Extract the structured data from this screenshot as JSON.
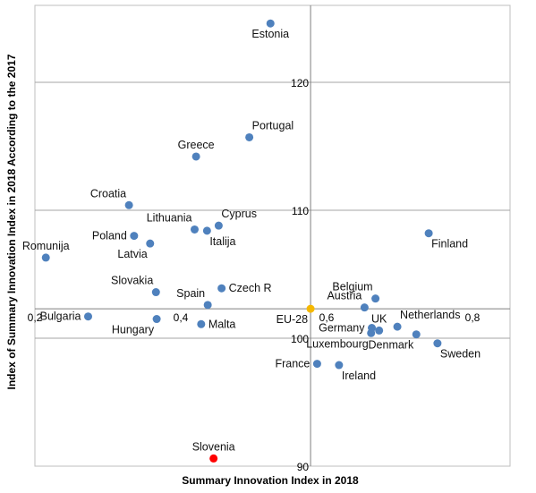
{
  "chart_data": {
    "type": "scatter",
    "title": "",
    "xlabel": "Summary Innovation Index in 2018",
    "ylabel": "Index of Summary Innovation Index in 2018 According to the 2017",
    "xlim": [
      0.2,
      0.8
    ],
    "ylim": [
      90,
      125
    ],
    "x_crosses_y_at": 102.3,
    "y_crosses_x_at": 0.578,
    "x_ticks": [
      {
        "value": 0.2,
        "label": "0,2"
      },
      {
        "value": 0.4,
        "label": "0,4"
      },
      {
        "value": 0.6,
        "label": "0,6"
      },
      {
        "value": 0.8,
        "label": "0,8"
      }
    ],
    "y_ticks": [
      {
        "value": 90,
        "label": "90"
      },
      {
        "value": 100,
        "label": "100"
      },
      {
        "value": 110,
        "label": "110"
      },
      {
        "value": 120,
        "label": "120"
      }
    ],
    "horizontal_gridlines": true,
    "marker_color": "#4f81bd",
    "highlight_colors": {
      "EU-28": "#f5b800",
      "Slovenia": "#ff0000"
    },
    "points": [
      {
        "name": "Estonia",
        "x": 0.523,
        "y": 124.6,
        "label_pos": "below",
        "color": "#4f81bd"
      },
      {
        "name": "Portugal",
        "x": 0.494,
        "y": 115.7,
        "label_pos": "above-right",
        "color": "#4f81bd"
      },
      {
        "name": "Greece",
        "x": 0.421,
        "y": 114.2,
        "label_pos": "above",
        "color": "#4f81bd"
      },
      {
        "name": "Croatia",
        "x": 0.329,
        "y": 110.4,
        "label_pos": "above-left",
        "color": "#4f81bd"
      },
      {
        "name": "Cyprus",
        "x": 0.452,
        "y": 108.8,
        "label_pos": "above-right",
        "color": "#4f81bd"
      },
      {
        "name": "Lithuania",
        "x": 0.419,
        "y": 108.5,
        "label_pos": "above-left",
        "color": "#4f81bd"
      },
      {
        "name": "Italija",
        "x": 0.436,
        "y": 108.4,
        "label_pos": "below-right",
        "color": "#4f81bd"
      },
      {
        "name": "Poland",
        "x": 0.336,
        "y": 108.0,
        "label_pos": "left",
        "color": "#4f81bd"
      },
      {
        "name": "Latvia",
        "x": 0.358,
        "y": 107.4,
        "label_pos": "below-left",
        "color": "#4f81bd"
      },
      {
        "name": "Romunija",
        "x": 0.215,
        "y": 106.3,
        "label_pos": "above",
        "color": "#4f81bd"
      },
      {
        "name": "Finland",
        "x": 0.74,
        "y": 108.2,
        "label_pos": "below-right",
        "color": "#4f81bd"
      },
      {
        "name": "Czech R",
        "x": 0.456,
        "y": 103.9,
        "label_pos": "right",
        "color": "#4f81bd"
      },
      {
        "name": "Slovakia",
        "x": 0.366,
        "y": 103.6,
        "label_pos": "above-left",
        "color": "#4f81bd"
      },
      {
        "name": "Spain",
        "x": 0.437,
        "y": 102.6,
        "label_pos": "above-left",
        "color": "#4f81bd"
      },
      {
        "name": "Belgium",
        "x": 0.667,
        "y": 103.1,
        "label_pos": "above-left",
        "color": "#4f81bd"
      },
      {
        "name": "Austria",
        "x": 0.652,
        "y": 102.4,
        "label_pos": "above-left",
        "color": "#4f81bd"
      },
      {
        "name": "EU-28",
        "x": 0.578,
        "y": 102.3,
        "label_pos": "below-left",
        "color": "#f5b800"
      },
      {
        "name": "Bulgaria",
        "x": 0.273,
        "y": 101.7,
        "label_pos": "left",
        "color": "#4f81bd"
      },
      {
        "name": "Hungary",
        "x": 0.367,
        "y": 101.5,
        "label_pos": "below-left",
        "color": "#4f81bd"
      },
      {
        "name": "Malta",
        "x": 0.428,
        "y": 101.1,
        "label_pos": "right",
        "color": "#4f81bd"
      },
      {
        "name": "UK",
        "x": 0.672,
        "y": 100.6,
        "label_pos": "above",
        "color": "#4f81bd"
      },
      {
        "name": "Germany",
        "x": 0.662,
        "y": 100.8,
        "label_pos": "left",
        "color": "#4f81bd"
      },
      {
        "name": "Netherlands",
        "x": 0.697,
        "y": 100.9,
        "label_pos": "above-right",
        "color": "#4f81bd"
      },
      {
        "name": "Luxembourg",
        "x": 0.661,
        "y": 100.4,
        "label_pos": "below-left",
        "color": "#4f81bd"
      },
      {
        "name": "Denmark",
        "x": 0.723,
        "y": 100.3,
        "label_pos": "below-left",
        "color": "#4f81bd"
      },
      {
        "name": "Sweden",
        "x": 0.752,
        "y": 99.6,
        "label_pos": "below-right",
        "color": "#4f81bd"
      },
      {
        "name": "France",
        "x": 0.587,
        "y": 98.0,
        "label_pos": "left",
        "color": "#4f81bd"
      },
      {
        "name": "Ireland",
        "x": 0.617,
        "y": 97.9,
        "label_pos": "below-right",
        "color": "#4f81bd"
      },
      {
        "name": "Slovenia",
        "x": 0.445,
        "y": 90.6,
        "label_pos": "above",
        "color": "#ff0000"
      }
    ]
  }
}
